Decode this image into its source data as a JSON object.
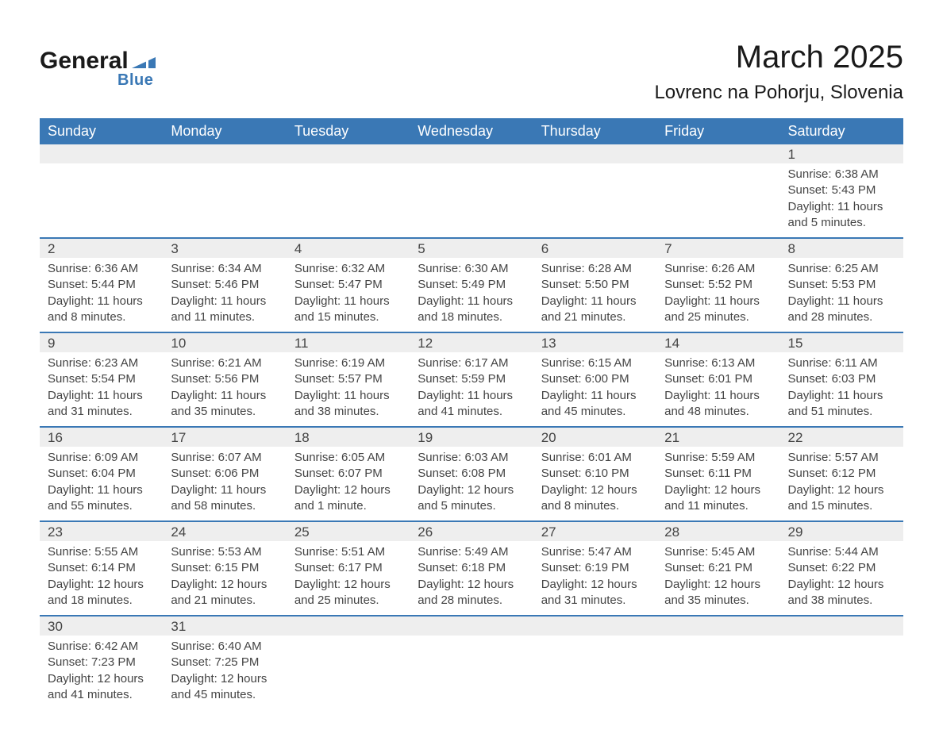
{
  "logo": {
    "main": "General",
    "sub": "Blue",
    "triangle_color": "#3a78b5"
  },
  "title": "March 2025",
  "location": "Lovrenc na Pohorju, Slovenia",
  "colors": {
    "header_bg": "#3a78b5",
    "header_text": "#ffffff",
    "daynum_bg": "#eeeeee",
    "row_border": "#3a78b5",
    "body_text": "#444444",
    "page_bg": "#ffffff"
  },
  "day_headers": [
    "Sunday",
    "Monday",
    "Tuesday",
    "Wednesday",
    "Thursday",
    "Friday",
    "Saturday"
  ],
  "weeks": [
    [
      null,
      null,
      null,
      null,
      null,
      null,
      {
        "day": "1",
        "sunrise": "Sunrise: 6:38 AM",
        "sunset": "Sunset: 5:43 PM",
        "daylight": "Daylight: 11 hours and 5 minutes."
      }
    ],
    [
      {
        "day": "2",
        "sunrise": "Sunrise: 6:36 AM",
        "sunset": "Sunset: 5:44 PM",
        "daylight": "Daylight: 11 hours and 8 minutes."
      },
      {
        "day": "3",
        "sunrise": "Sunrise: 6:34 AM",
        "sunset": "Sunset: 5:46 PM",
        "daylight": "Daylight: 11 hours and 11 minutes."
      },
      {
        "day": "4",
        "sunrise": "Sunrise: 6:32 AM",
        "sunset": "Sunset: 5:47 PM",
        "daylight": "Daylight: 11 hours and 15 minutes."
      },
      {
        "day": "5",
        "sunrise": "Sunrise: 6:30 AM",
        "sunset": "Sunset: 5:49 PM",
        "daylight": "Daylight: 11 hours and 18 minutes."
      },
      {
        "day": "6",
        "sunrise": "Sunrise: 6:28 AM",
        "sunset": "Sunset: 5:50 PM",
        "daylight": "Daylight: 11 hours and 21 minutes."
      },
      {
        "day": "7",
        "sunrise": "Sunrise: 6:26 AM",
        "sunset": "Sunset: 5:52 PM",
        "daylight": "Daylight: 11 hours and 25 minutes."
      },
      {
        "day": "8",
        "sunrise": "Sunrise: 6:25 AM",
        "sunset": "Sunset: 5:53 PM",
        "daylight": "Daylight: 11 hours and 28 minutes."
      }
    ],
    [
      {
        "day": "9",
        "sunrise": "Sunrise: 6:23 AM",
        "sunset": "Sunset: 5:54 PM",
        "daylight": "Daylight: 11 hours and 31 minutes."
      },
      {
        "day": "10",
        "sunrise": "Sunrise: 6:21 AM",
        "sunset": "Sunset: 5:56 PM",
        "daylight": "Daylight: 11 hours and 35 minutes."
      },
      {
        "day": "11",
        "sunrise": "Sunrise: 6:19 AM",
        "sunset": "Sunset: 5:57 PM",
        "daylight": "Daylight: 11 hours and 38 minutes."
      },
      {
        "day": "12",
        "sunrise": "Sunrise: 6:17 AM",
        "sunset": "Sunset: 5:59 PM",
        "daylight": "Daylight: 11 hours and 41 minutes."
      },
      {
        "day": "13",
        "sunrise": "Sunrise: 6:15 AM",
        "sunset": "Sunset: 6:00 PM",
        "daylight": "Daylight: 11 hours and 45 minutes."
      },
      {
        "day": "14",
        "sunrise": "Sunrise: 6:13 AM",
        "sunset": "Sunset: 6:01 PM",
        "daylight": "Daylight: 11 hours and 48 minutes."
      },
      {
        "day": "15",
        "sunrise": "Sunrise: 6:11 AM",
        "sunset": "Sunset: 6:03 PM",
        "daylight": "Daylight: 11 hours and 51 minutes."
      }
    ],
    [
      {
        "day": "16",
        "sunrise": "Sunrise: 6:09 AM",
        "sunset": "Sunset: 6:04 PM",
        "daylight": "Daylight: 11 hours and 55 minutes."
      },
      {
        "day": "17",
        "sunrise": "Sunrise: 6:07 AM",
        "sunset": "Sunset: 6:06 PM",
        "daylight": "Daylight: 11 hours and 58 minutes."
      },
      {
        "day": "18",
        "sunrise": "Sunrise: 6:05 AM",
        "sunset": "Sunset: 6:07 PM",
        "daylight": "Daylight: 12 hours and 1 minute."
      },
      {
        "day": "19",
        "sunrise": "Sunrise: 6:03 AM",
        "sunset": "Sunset: 6:08 PM",
        "daylight": "Daylight: 12 hours and 5 minutes."
      },
      {
        "day": "20",
        "sunrise": "Sunrise: 6:01 AM",
        "sunset": "Sunset: 6:10 PM",
        "daylight": "Daylight: 12 hours and 8 minutes."
      },
      {
        "day": "21",
        "sunrise": "Sunrise: 5:59 AM",
        "sunset": "Sunset: 6:11 PM",
        "daylight": "Daylight: 12 hours and 11 minutes."
      },
      {
        "day": "22",
        "sunrise": "Sunrise: 5:57 AM",
        "sunset": "Sunset: 6:12 PM",
        "daylight": "Daylight: 12 hours and 15 minutes."
      }
    ],
    [
      {
        "day": "23",
        "sunrise": "Sunrise: 5:55 AM",
        "sunset": "Sunset: 6:14 PM",
        "daylight": "Daylight: 12 hours and 18 minutes."
      },
      {
        "day": "24",
        "sunrise": "Sunrise: 5:53 AM",
        "sunset": "Sunset: 6:15 PM",
        "daylight": "Daylight: 12 hours and 21 minutes."
      },
      {
        "day": "25",
        "sunrise": "Sunrise: 5:51 AM",
        "sunset": "Sunset: 6:17 PM",
        "daylight": "Daylight: 12 hours and 25 minutes."
      },
      {
        "day": "26",
        "sunrise": "Sunrise: 5:49 AM",
        "sunset": "Sunset: 6:18 PM",
        "daylight": "Daylight: 12 hours and 28 minutes."
      },
      {
        "day": "27",
        "sunrise": "Sunrise: 5:47 AM",
        "sunset": "Sunset: 6:19 PM",
        "daylight": "Daylight: 12 hours and 31 minutes."
      },
      {
        "day": "28",
        "sunrise": "Sunrise: 5:45 AM",
        "sunset": "Sunset: 6:21 PM",
        "daylight": "Daylight: 12 hours and 35 minutes."
      },
      {
        "day": "29",
        "sunrise": "Sunrise: 5:44 AM",
        "sunset": "Sunset: 6:22 PM",
        "daylight": "Daylight: 12 hours and 38 minutes."
      }
    ],
    [
      {
        "day": "30",
        "sunrise": "Sunrise: 6:42 AM",
        "sunset": "Sunset: 7:23 PM",
        "daylight": "Daylight: 12 hours and 41 minutes."
      },
      {
        "day": "31",
        "sunrise": "Sunrise: 6:40 AM",
        "sunset": "Sunset: 7:25 PM",
        "daylight": "Daylight: 12 hours and 45 minutes."
      },
      null,
      null,
      null,
      null,
      null
    ]
  ]
}
